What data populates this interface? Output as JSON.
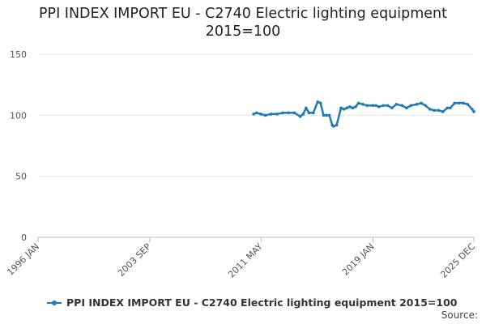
{
  "chart_data": {
    "type": "line",
    "title_line1": "PPI INDEX IMPORT EU - C2740 Electric lighting equipment",
    "title_line2": "2015=100",
    "ylim": [
      0,
      150
    ],
    "yticks": [
      "0",
      "50",
      "100",
      "150"
    ],
    "xticks": [
      "1996 JAN",
      "2003 SEP",
      "2011 MAY",
      "2019 JAN",
      "2025 DEC"
    ],
    "xtick_values": [
      1996.0,
      2003.67,
      2011.33,
      2019.0,
      2025.92
    ],
    "xlim": [
      1996.0,
      2025.92
    ],
    "series": [
      {
        "name": "PPI INDEX IMPORT EU - C2740 Electric lighting equipment 2015=100",
        "color": "#1f7ab8",
        "x": [
          2010.8,
          2011.0,
          2011.3,
          2011.6,
          2012.0,
          2012.4,
          2012.8,
          2013.2,
          2013.6,
          2014.0,
          2014.2,
          2014.4,
          2014.6,
          2014.9,
          2015.2,
          2015.4,
          2015.6,
          2015.8,
          2016.0,
          2016.2,
          2016.3,
          2016.5,
          2016.8,
          2017.0,
          2017.2,
          2017.4,
          2017.6,
          2017.8,
          2018.0,
          2018.3,
          2018.6,
          2019.0,
          2019.2,
          2019.4,
          2019.7,
          2020.0,
          2020.3,
          2020.6,
          2021.0,
          2021.3,
          2021.6,
          2022.0,
          2022.3,
          2022.6,
          2022.9,
          2023.2,
          2023.5,
          2023.8,
          2024.1,
          2024.3,
          2024.6,
          2024.9,
          2025.2,
          2025.5,
          2025.8,
          2025.92
        ],
        "y": [
          101,
          102,
          101,
          100,
          101,
          101,
          102,
          102,
          102,
          99,
          101,
          106,
          102,
          102,
          111,
          110,
          100,
          100,
          100,
          92,
          91,
          92,
          106,
          105,
          106,
          107,
          106,
          107,
          110,
          109,
          108,
          108,
          108,
          107,
          108,
          108,
          106,
          109,
          108,
          106,
          108,
          109,
          110,
          108,
          105,
          104,
          104,
          103,
          106,
          106,
          110,
          110,
          110,
          109,
          105,
          103
        ]
      }
    ]
  },
  "legend_label": "PPI INDEX IMPORT EU - C2740 Electric lighting equipment 2015=100",
  "source_label": "Source:"
}
